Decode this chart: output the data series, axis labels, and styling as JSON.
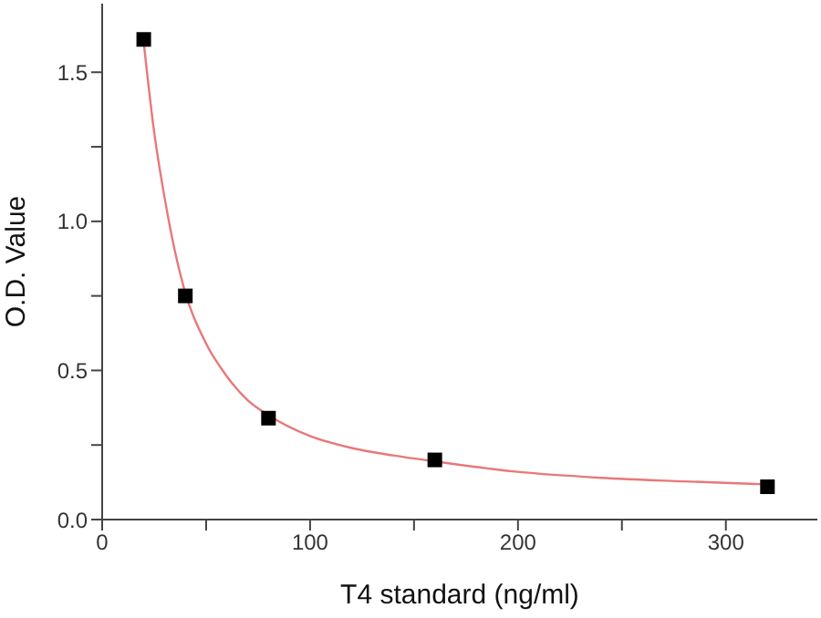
{
  "chart_data": {
    "type": "scatter",
    "xlabel": "T4 standard (ng/ml)",
    "ylabel": "O.D. Value",
    "xlim": [
      0,
      344
    ],
    "ylim": [
      0,
      1.73
    ],
    "xticks": [
      0,
      {
        "value": 50,
        "label": null
      },
      100,
      {
        "value": 150,
        "label": null
      },
      200,
      {
        "value": 250,
        "label": null
      },
      300
    ],
    "yticks": [
      {
        "value": 0,
        "label": "0.0"
      },
      {
        "value": 0.25,
        "label": null
      },
      0.5,
      {
        "value": 0.75,
        "label": null
      },
      {
        "value": 1,
        "label": "1.0"
      },
      {
        "value": 1.25,
        "label": null
      },
      1.5
    ],
    "grid": false,
    "legend": false,
    "marker": "square",
    "series": [
      {
        "color": "#000000",
        "x": [
          20,
          40,
          80,
          160,
          320
        ],
        "values": [
          1.61,
          0.75,
          0.34,
          0.2,
          0.11
        ]
      },
      {
        "type": "line",
        "color": "#e87878",
        "marker": "none",
        "x": [
          20,
          25,
          30,
          35,
          40,
          50,
          60,
          70,
          80,
          100,
          120,
          140,
          160,
          200,
          240,
          280,
          320
        ],
        "values": [
          1.6,
          1.3,
          1.08,
          0.9,
          0.76,
          0.59,
          0.48,
          0.4,
          0.35,
          0.28,
          0.24,
          0.215,
          0.195,
          0.16,
          0.14,
          0.128,
          0.118
        ]
      }
    ]
  }
}
